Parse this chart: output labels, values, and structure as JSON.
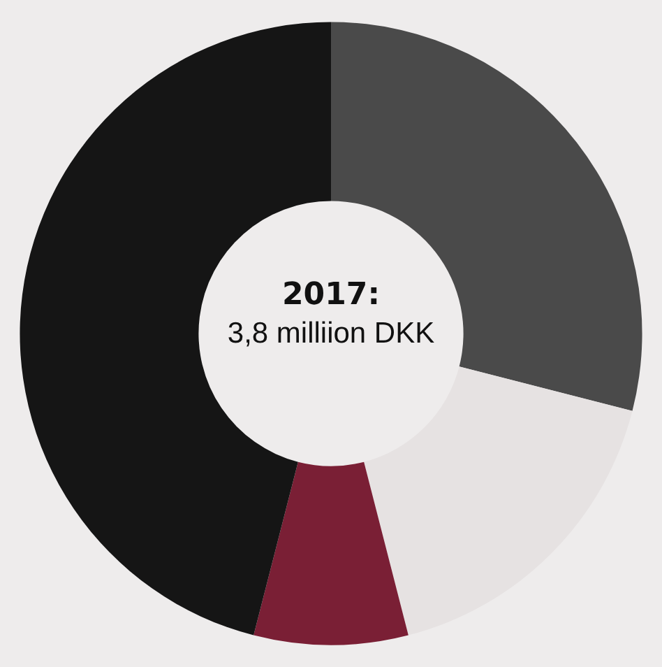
{
  "chart_data": {
    "type": "donut",
    "title": "2017:",
    "subtitle": "3,8 milliion DKK",
    "categories": [
      null,
      null,
      null,
      null
    ],
    "values": [
      29,
      17,
      8,
      46
    ],
    "colors": [
      "#4a4a4a",
      "#e6e2e2",
      "#7a1f35",
      "#151515"
    ]
  }
}
